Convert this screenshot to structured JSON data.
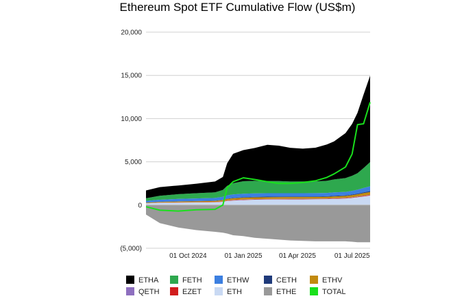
{
  "chart_data": {
    "type": "area",
    "title": "Ethereum Spot ETF Cumulative Flow (US$m)",
    "xlabel": "",
    "ylabel": "",
    "ylim": [
      -5000,
      20000
    ],
    "yticks": [
      20000,
      15000,
      10000,
      5000,
      0,
      -5000
    ],
    "ytick_labels": [
      "20,000",
      "15,000",
      "10,000",
      "5,000",
      "0",
      "(5,000)"
    ],
    "xticks": [
      {
        "date": "2024-10-01",
        "label": "01 Oct 2024"
      },
      {
        "date": "2025-01-01",
        "label": "01 Jan 2025"
      },
      {
        "date": "2025-04-01",
        "label": "01 Apr 2025"
      },
      {
        "date": "2025-07-01",
        "label": "01 Jul 2025"
      }
    ],
    "grid": true,
    "legend_position": "bottom",
    "stack_order": [
      "ETH",
      "EZET",
      "QETH",
      "ETHV",
      "CETH",
      "ETHW",
      "FETH",
      "ETHA"
    ],
    "x": [
      "2024-07-23",
      "2024-08-15",
      "2024-09-15",
      "2024-10-15",
      "2024-11-15",
      "2024-11-28",
      "2024-12-05",
      "2024-12-15",
      "2025-01-01",
      "2025-01-20",
      "2025-02-10",
      "2025-03-01",
      "2025-03-20",
      "2025-04-10",
      "2025-05-01",
      "2025-05-20",
      "2025-06-01",
      "2025-06-20",
      "2025-07-01",
      "2025-07-10",
      "2025-07-20",
      "2025-07-31"
    ],
    "series": [
      {
        "name": "ETHA",
        "color": "#000000",
        "values": [
          900,
          1000,
          1000,
          1100,
          1250,
          1500,
          2600,
          3400,
          3600,
          3800,
          4200,
          4100,
          3900,
          3800,
          3900,
          4200,
          4400,
          5200,
          6000,
          7000,
          8500,
          10000
        ]
      },
      {
        "name": "FETH",
        "color": "#2ea84e",
        "values": [
          300,
          450,
          550,
          600,
          650,
          800,
          1100,
          1300,
          1450,
          1450,
          1400,
          1400,
          1350,
          1350,
          1350,
          1400,
          1500,
          1600,
          1750,
          1900,
          2300,
          2800
        ]
      },
      {
        "name": "ETHW",
        "color": "#3c7fe0",
        "values": [
          200,
          250,
          280,
          300,
          320,
          350,
          380,
          400,
          400,
          400,
          400,
          390,
          380,
          380,
          380,
          380,
          390,
          400,
          420,
          450,
          500,
          550
        ]
      },
      {
        "name": "CETH",
        "color": "#1f3a7a",
        "values": [
          10,
          15,
          20,
          20,
          25,
          30,
          40,
          50,
          60,
          65,
          65,
          65,
          65,
          65,
          65,
          65,
          70,
          70,
          75,
          80,
          90,
          100
        ]
      },
      {
        "name": "ETHV",
        "color": "#c28a0e",
        "values": [
          60,
          80,
          100,
          110,
          120,
          140,
          170,
          190,
          200,
          200,
          200,
          200,
          200,
          200,
          200,
          200,
          210,
          220,
          240,
          260,
          290,
          320
        ]
      },
      {
        "name": "QETH",
        "color": "#8e6fbf",
        "values": [
          5,
          10,
          10,
          15,
          15,
          20,
          20,
          25,
          25,
          25,
          25,
          25,
          25,
          25,
          25,
          25,
          25,
          25,
          30,
          30,
          30,
          30
        ]
      },
      {
        "name": "EZET",
        "color": "#d11d1d",
        "values": [
          10,
          15,
          20,
          20,
          25,
          30,
          35,
          40,
          40,
          40,
          40,
          40,
          40,
          40,
          40,
          40,
          45,
          45,
          50,
          55,
          60,
          65
        ]
      },
      {
        "name": "ETH",
        "color": "#c9d9f3",
        "values": [
          200,
          250,
          280,
          300,
          320,
          380,
          480,
          520,
          580,
          620,
          640,
          650,
          660,
          660,
          670,
          690,
          720,
          760,
          820,
          900,
          1000,
          1100
        ]
      },
      {
        "name": "ETHE",
        "color": "#999999",
        "values": [
          -1100,
          -2100,
          -2600,
          -2900,
          -3100,
          -3200,
          -3300,
          -3500,
          -3600,
          -3800,
          -3900,
          -4000,
          -4100,
          -4150,
          -4200,
          -4200,
          -4200,
          -4200,
          -4250,
          -4300,
          -4300,
          -4300
        ]
      },
      {
        "name": "TOTAL",
        "color": "#19e01c",
        "values": [
          -200,
          -600,
          -700,
          -550,
          -500,
          0,
          2000,
          2700,
          3150,
          2950,
          2700,
          2500,
          2500,
          2600,
          2800,
          3200,
          3600,
          4400,
          5900,
          9300,
          9400,
          11900
        ]
      }
    ]
  }
}
